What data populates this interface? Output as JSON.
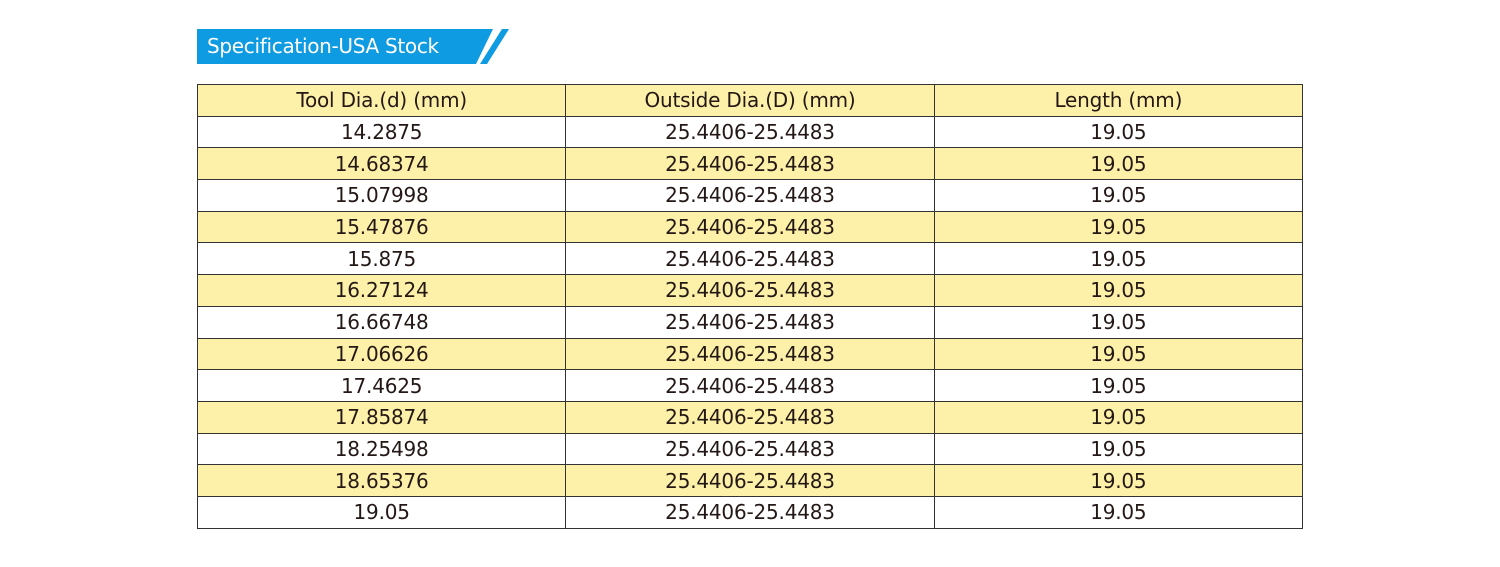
{
  "section_title": "Specification-USA Stock",
  "colors": {
    "banner": "#0e9be1",
    "highlight_row": "#fdf0a9"
  },
  "table": {
    "headers": [
      "Tool Dia.(d) (mm)",
      "Outside Dia.(D) (mm)",
      "Length (mm)"
    ],
    "rows": [
      [
        "14.2875",
        "25.4406-25.4483",
        "19.05"
      ],
      [
        "14.68374",
        "25.4406-25.4483",
        "19.05"
      ],
      [
        "15.07998",
        "25.4406-25.4483",
        "19.05"
      ],
      [
        "15.47876",
        "25.4406-25.4483",
        "19.05"
      ],
      [
        "15.875",
        "25.4406-25.4483",
        "19.05"
      ],
      [
        "16.27124",
        "25.4406-25.4483",
        "19.05"
      ],
      [
        "16.66748",
        "25.4406-25.4483",
        "19.05"
      ],
      [
        "17.06626",
        "25.4406-25.4483",
        "19.05"
      ],
      [
        "17.4625",
        "25.4406-25.4483",
        "19.05"
      ],
      [
        "17.85874",
        "25.4406-25.4483",
        "19.05"
      ],
      [
        "18.25498",
        "25.4406-25.4483",
        "19.05"
      ],
      [
        "18.65376",
        "25.4406-25.4483",
        "19.05"
      ],
      [
        "19.05",
        "25.4406-25.4483",
        "19.05"
      ]
    ]
  }
}
